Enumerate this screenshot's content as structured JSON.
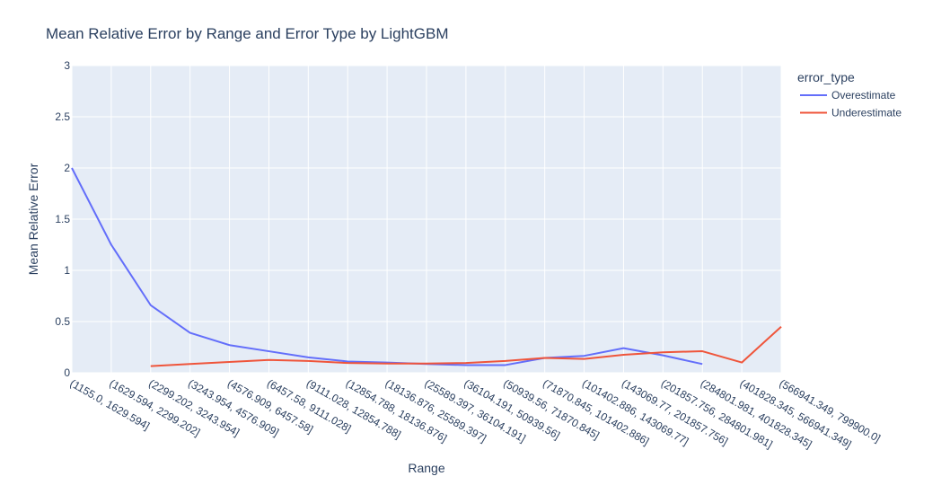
{
  "chart_data": {
    "type": "line",
    "title": "Mean Relative Error by Range and Error Type by LightGBM",
    "xlabel": "Range",
    "ylabel": "Mean Relative Error",
    "ylim": [
      0,
      3
    ],
    "yticks": [
      0,
      0.5,
      1,
      1.5,
      2,
      2.5,
      3
    ],
    "ytick_labels": [
      "0",
      "0.5",
      "1",
      "1.5",
      "2",
      "2.5",
      "3"
    ],
    "grid": true,
    "legend_title": "error_type",
    "legend_position": "right",
    "categories": [
      "(1155.0, 1629.594]",
      "(1629.594, 2299.202]",
      "(2299.202, 3243.954]",
      "(3243.954, 4576.909]",
      "(4576.909, 6457.58]",
      "(6457.58, 9111.028]",
      "(9111.028, 12854.788]",
      "(12854.788, 18136.876]",
      "(18136.876, 25589.397]",
      "(25589.397, 36104.191]",
      "(36104.191, 50939.56]",
      "(50939.56, 71870.845]",
      "(71870.845, 101402.886]",
      "(101402.886, 143069.77]",
      "(143069.77, 201857.756]",
      "(201857.756, 284801.981]",
      "(284801.981, 401828.345]",
      "(401828.345, 566941.349]",
      "(566941.349, 799900.0]"
    ],
    "series": [
      {
        "name": "Overestimate",
        "color": "#636efa",
        "values": [
          2.0,
          1.25,
          0.66,
          0.39,
          0.27,
          0.21,
          0.15,
          0.11,
          0.1,
          0.085,
          0.075,
          0.075,
          0.145,
          0.165,
          0.24,
          0.17,
          0.085,
          null,
          null
        ]
      },
      {
        "name": "Underestimate",
        "color": "#ef553b",
        "values": [
          null,
          null,
          0.065,
          0.085,
          0.105,
          0.125,
          0.115,
          0.095,
          0.09,
          0.09,
          0.095,
          0.115,
          0.145,
          0.135,
          0.175,
          0.2,
          0.21,
          0.1,
          0.45
        ]
      }
    ]
  }
}
